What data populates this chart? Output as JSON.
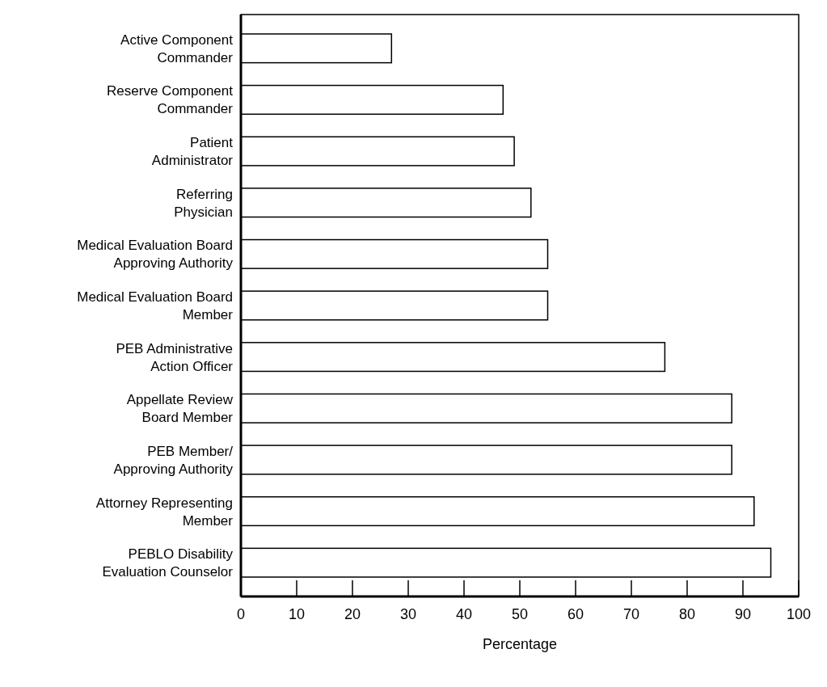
{
  "chart_data": {
    "type": "bar",
    "orientation": "horizontal",
    "xlabel": "Percentage",
    "categories": [
      "Active Component\nCommander",
      "Reserve Component\nCommander",
      "Patient\nAdministrator",
      "Referring\nPhysician",
      "Medical Evaluation Board\nApproving Authority",
      "Medical Evaluation Board\nMember",
      "PEB Administrative\nAction Officer",
      "Appellate Review\nBoard Member",
      "PEB Member/\nApproving Authority",
      "Attorney Representing\nMember",
      "PEBLO Disability\nEvaluation Counselor"
    ],
    "values": [
      27,
      47,
      49,
      52,
      55,
      55,
      76,
      88,
      88,
      92,
      95
    ],
    "color": "#ffffff",
    "xlim": [
      0,
      100
    ],
    "xticks": [
      0,
      10,
      20,
      30,
      40,
      50,
      60,
      70,
      80,
      90,
      100
    ],
    "grid": false
  }
}
